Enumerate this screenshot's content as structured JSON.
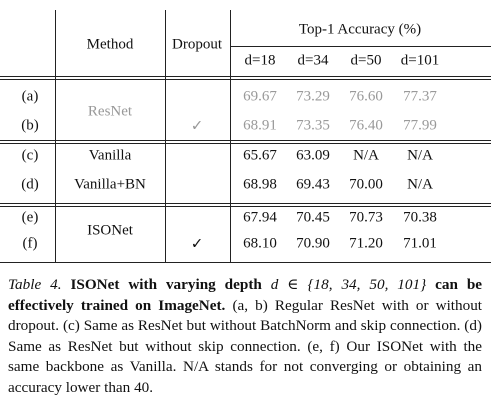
{
  "table": {
    "header": {
      "method": "Method",
      "dropout": "Dropout",
      "group": "Top-1 Accuracy (%)",
      "depths": [
        "d=18",
        "d=34",
        "d=50",
        "d=101"
      ]
    },
    "groups": [
      {
        "method": "ResNet",
        "rows": [
          {
            "label": "(a)",
            "values": [
              "69.67",
              "73.29",
              "76.60",
              "77.37"
            ]
          },
          {
            "label": "(b)",
            "dropout": "✓",
            "values": [
              "68.91",
              "73.35",
              "76.40",
              "77.99"
            ]
          }
        ]
      },
      {
        "rows": [
          {
            "label": "(c)",
            "method": "Vanilla",
            "values": [
              "65.67",
              "63.09",
              "N/A",
              "N/A"
            ]
          },
          {
            "label": "(d)",
            "method": "Vanilla+BN",
            "values": [
              "68.98",
              "69.43",
              "70.00",
              "N/A"
            ]
          }
        ]
      },
      {
        "method": "ISONet",
        "rows": [
          {
            "label": "(e)",
            "values": [
              "67.94",
              "70.45",
              "70.73",
              "70.38"
            ]
          },
          {
            "label": "(f)",
            "dropout": "✓",
            "values": [
              "68.10",
              "70.90",
              "71.20",
              "71.01"
            ]
          }
        ]
      }
    ]
  },
  "caption": {
    "label": "Table 4.",
    "bold_1": "ISONet with varying depth",
    "math": "d ∈ {18, 34, 50, 101}",
    "bold_2": "can be effectively trained on ImageNet.",
    "body": "(a, b) Regular ResNet with or without dropout. (c) Same as ResNet but without BatchNorm and skip connection. (d) Same as ResNet but without skip connection. (e, f) Our ISONet with the same backbone as Vanilla. N/A stands for not converging or obtaining an accuracy lower than 40."
  }
}
